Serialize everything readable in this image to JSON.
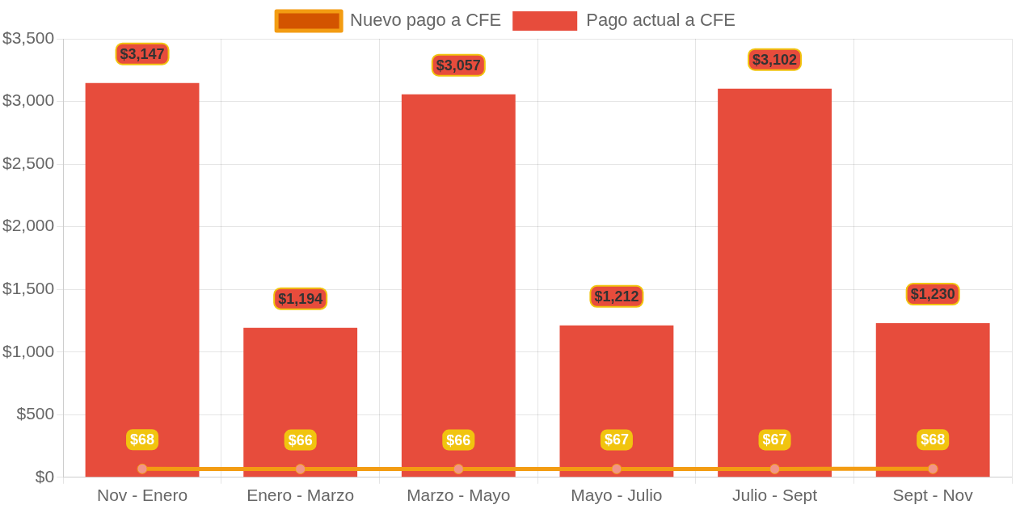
{
  "chart_data": {
    "type": "bar",
    "categories": [
      "Nov - Enero",
      "Enero - Marzo",
      "Marzo - Mayo",
      "Mayo - Julio",
      "Julio - Sept",
      "Sept - Nov"
    ],
    "series": [
      {
        "name": "Nuevo pago a CFE",
        "type": "line",
        "color": "#f39c12",
        "marker": "circle",
        "values": [
          68,
          66,
          66,
          67,
          67,
          68
        ],
        "value_labels": [
          "$68",
          "$66",
          "$66",
          "$67",
          "$67",
          "$68"
        ]
      },
      {
        "name": "Pago actual a CFE",
        "color": "#e74c3c",
        "values": [
          3147,
          1194,
          3057,
          1212,
          3102,
          1230
        ],
        "value_labels": [
          "$3,147",
          "$1,194",
          "$3,057",
          "$1,212",
          "$3,102",
          "$1,230"
        ]
      }
    ],
    "ylim": [
      0,
      3500
    ],
    "yticks": [
      {
        "value": 0,
        "label": "$0"
      },
      {
        "value": 500,
        "label": "$500"
      },
      {
        "value": 1000,
        "label": "$1,000"
      },
      {
        "value": 1500,
        "label": "$1,500"
      },
      {
        "value": 2000,
        "label": "$2,000"
      },
      {
        "value": 2500,
        "label": "$2,500"
      },
      {
        "value": 3000,
        "label": "$3,000"
      },
      {
        "value": 3500,
        "label": "$3,500"
      }
    ],
    "grid": true,
    "legend": "top"
  }
}
